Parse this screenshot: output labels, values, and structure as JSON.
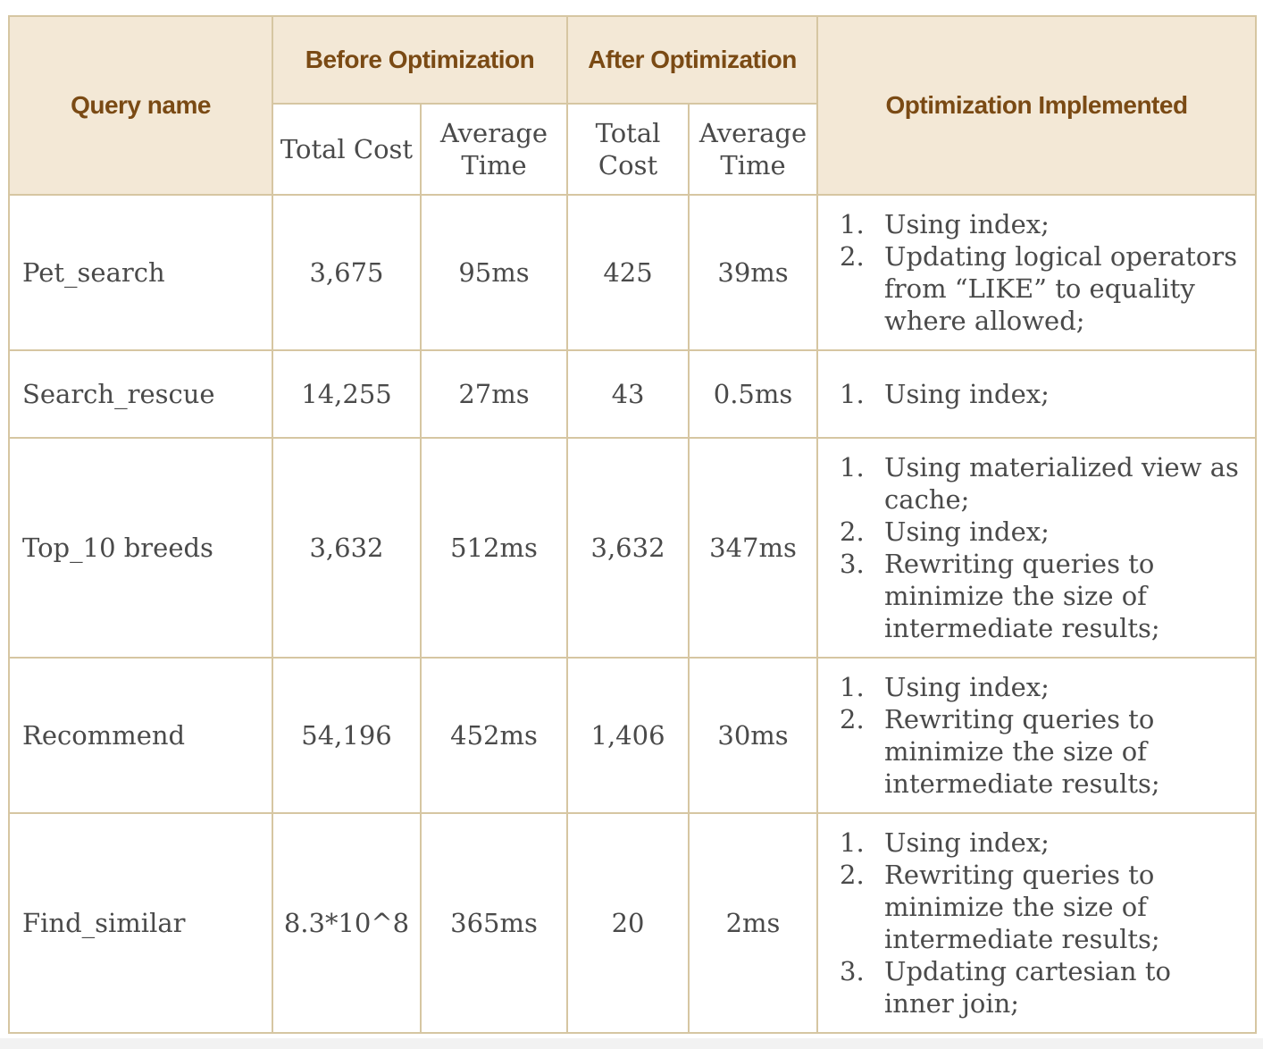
{
  "header": {
    "query_name": "Query name",
    "before": "Before Optimization",
    "after": "After Optimization",
    "optimization": "Optimization Implemented",
    "total_cost": "Total Cost",
    "average_time": "Average Time",
    "total_cost_after": "Total Cost",
    "average_time_after": "Average Time"
  },
  "rows": [
    {
      "name": "Pet_search",
      "before_cost": "3,675",
      "before_time": "95ms",
      "after_cost": "425",
      "after_time": "39ms",
      "optimizations": [
        {
          "num": "1.",
          "text": "Using index;"
        },
        {
          "num": "2.",
          "text": "Updating logical operators from “LIKE” to equality where allowed;"
        }
      ]
    },
    {
      "name": "Search_rescue",
      "before_cost": "14,255",
      "before_time": "27ms",
      "after_cost": "43",
      "after_time": "0.5ms",
      "optimizations": [
        {
          "num": "1.",
          "text": "Using index;"
        }
      ]
    },
    {
      "name": "Top_10 breeds",
      "before_cost": "3,632",
      "before_time": "512ms",
      "after_cost": "3,632",
      "after_time": "347ms",
      "optimizations": [
        {
          "num": "1.",
          "text": "Using materialized view as cache;"
        },
        {
          "num": "2.",
          "text": "Using index;"
        },
        {
          "num": "3.",
          "text": "Rewriting queries to minimize the size of intermediate results;"
        }
      ]
    },
    {
      "name": "Recommend",
      "before_cost": "54,196",
      "before_time": "452ms",
      "after_cost": "1,406",
      "after_time": "30ms",
      "optimizations": [
        {
          "num": "1.",
          "text": "Using index;"
        },
        {
          "num": "2.",
          "text": "Rewriting queries to minimize the size of intermediate results;"
        }
      ]
    },
    {
      "name": "Find_similar",
      "before_cost": "8.3*10^8",
      "before_time": "365ms",
      "after_cost": "20",
      "after_time": "2ms",
      "optimizations": [
        {
          "num": "1.",
          "text": "Using index;"
        },
        {
          "num": "2.",
          "text": "Rewriting queries to minimize the size of intermediate results;"
        },
        {
          "num": "3.",
          "text": "Updating cartesian to inner join;"
        }
      ]
    }
  ],
  "colors": {
    "header_bg": "#f3e8d6",
    "header_text": "#7a4a14",
    "border": "#d6c6a2",
    "body_text": "#4a4a4a"
  }
}
